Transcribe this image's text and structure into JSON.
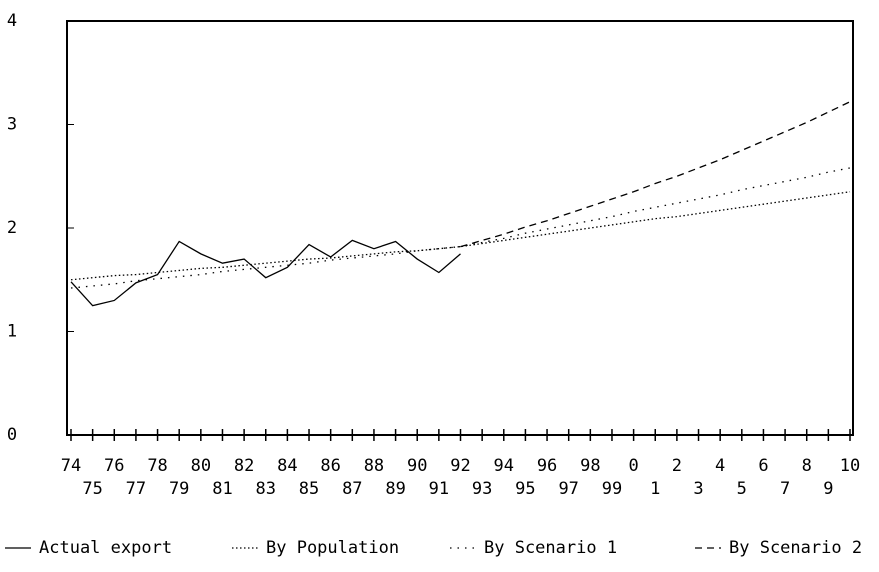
{
  "chart_data": {
    "type": "line",
    "categories": [
      "74",
      "75",
      "76",
      "77",
      "78",
      "79",
      "80",
      "81",
      "82",
      "83",
      "84",
      "85",
      "86",
      "87",
      "88",
      "89",
      "90",
      "91",
      "92",
      "93",
      "94",
      "95",
      "96",
      "97",
      "98",
      "99",
      "0",
      "1",
      "2",
      "3",
      "4",
      "5",
      "6",
      "7",
      "8",
      "9",
      "10"
    ],
    "series": [
      {
        "name": "Actual export",
        "color": "#000000",
        "style": "solid",
        "values": [
          1.48,
          1.25,
          1.3,
          1.47,
          1.55,
          1.87,
          1.75,
          1.66,
          1.7,
          1.52,
          1.62,
          1.84,
          1.72,
          1.88,
          1.8,
          1.87,
          1.7,
          1.57,
          1.75,
          null,
          null,
          null,
          null,
          null,
          null,
          null,
          null,
          null,
          null,
          null,
          null,
          null,
          null,
          null,
          null,
          null,
          null
        ]
      },
      {
        "name": "By Population",
        "color": "#000000",
        "style": "dotted",
        "values": [
          1.5,
          1.52,
          1.54,
          1.55,
          1.57,
          1.59,
          1.61,
          1.62,
          1.64,
          1.66,
          1.68,
          1.7,
          1.71,
          1.73,
          1.75,
          1.77,
          1.78,
          1.8,
          1.82,
          1.85,
          1.88,
          1.91,
          1.94,
          1.97,
          2.0,
          2.03,
          2.06,
          2.09,
          2.11,
          2.14,
          2.17,
          2.2,
          2.23,
          2.26,
          2.29,
          2.32,
          2.35
        ]
      },
      {
        "name": "By Scenario 1",
        "color": "#000000",
        "style": "sparse-dotted",
        "values": [
          1.42,
          1.44,
          1.46,
          1.49,
          1.51,
          1.53,
          1.55,
          1.58,
          1.6,
          1.62,
          1.64,
          1.66,
          1.69,
          1.71,
          1.73,
          1.75,
          1.78,
          1.8,
          1.82,
          1.86,
          1.9,
          1.95,
          1.99,
          2.03,
          2.07,
          2.11,
          2.16,
          2.2,
          2.24,
          2.28,
          2.32,
          2.37,
          2.41,
          2.45,
          2.49,
          2.54,
          2.58
        ]
      },
      {
        "name": "By Scenario 2",
        "color": "#000000",
        "style": "dashed",
        "values": [
          null,
          null,
          null,
          null,
          null,
          null,
          null,
          null,
          null,
          null,
          null,
          null,
          null,
          null,
          null,
          null,
          null,
          null,
          1.82,
          1.88,
          1.94,
          2.01,
          2.07,
          2.14,
          2.21,
          2.28,
          2.35,
          2.43,
          2.5,
          2.58,
          2.66,
          2.75,
          2.84,
          2.93,
          3.02,
          3.12,
          3.22
        ]
      }
    ],
    "ylim": [
      0,
      4
    ],
    "yticks": [
      0,
      1,
      2,
      3,
      4
    ],
    "legend": "bottom"
  }
}
